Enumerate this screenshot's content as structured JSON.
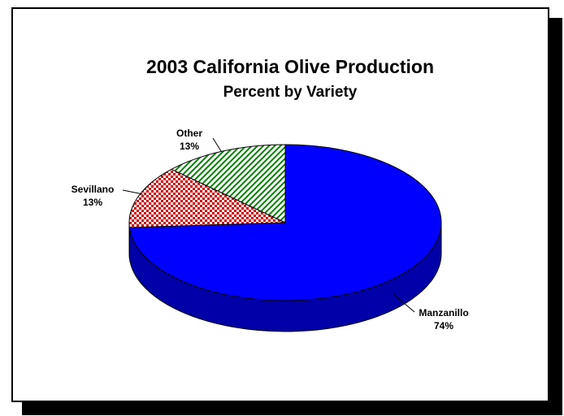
{
  "chart_data": {
    "type": "pie",
    "title": "2003 California Olive Production",
    "subtitle": "Percent by Variety",
    "slices": [
      {
        "label": "Manzanillo",
        "value": 74,
        "value_label": "74%",
        "color": "#0000ff",
        "side_color": "#0000a8",
        "pattern": "solid"
      },
      {
        "label": "Sevillano",
        "value": 13,
        "value_label": "13%",
        "color": "#cc0000",
        "pattern": "checker"
      },
      {
        "label": "Other",
        "value": 13,
        "value_label": "13%",
        "color": "#008000",
        "pattern": "diagonal"
      }
    ],
    "style": "3d",
    "legend": "none"
  }
}
